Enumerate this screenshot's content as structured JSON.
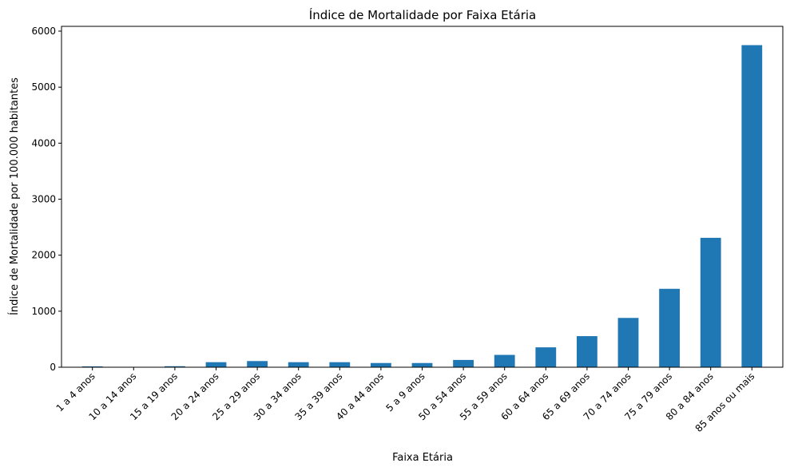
{
  "chart_data": {
    "type": "bar",
    "title": "Índice de Mortalidade por Faixa Etária",
    "xlabel": "Faixa Etária",
    "ylabel": "Índice de Mortalidade por 100.000 habitantes",
    "categories": [
      "1 a 4 anos",
      "10 a 14 anos",
      "15 a 19 anos",
      "20 a 24 anos",
      "25 a 29 anos",
      "30 a 34 anos",
      "35 a 39 anos",
      "40 a 44 anos",
      "5 a 9 anos",
      "50 a 54 anos",
      "55 a 59 anos",
      "60 a 64 anos",
      "65 a 69 anos",
      "70 a 74 anos",
      "75 a 79 anos",
      "80 a 84 anos",
      "85 anos ou mais"
    ],
    "values": [
      15,
      5,
      18,
      90,
      110,
      90,
      90,
      75,
      75,
      130,
      220,
      355,
      555,
      880,
      1400,
      2310,
      5750
    ],
    "ylim": [
      0,
      6000
    ],
    "yticks": [
      0,
      1000,
      2000,
      3000,
      4000,
      5000,
      6000
    ],
    "bar_color": "#1f77b4",
    "grid": false,
    "legend": "none"
  }
}
